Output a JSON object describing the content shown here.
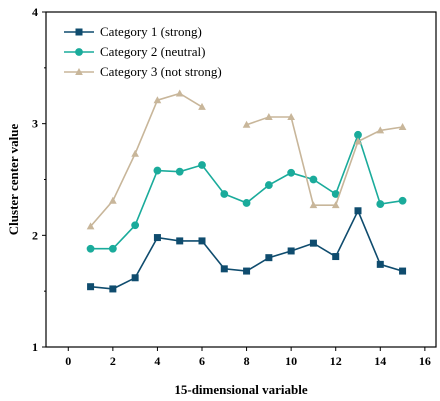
{
  "chart_data": {
    "type": "line",
    "xlabel": "15-dimensional variable",
    "ylabel": "Cluster center value",
    "xlim": [
      -1,
      16.5
    ],
    "ylim": [
      1,
      4
    ],
    "xticks": [
      0,
      2,
      4,
      6,
      8,
      10,
      12,
      14,
      16
    ],
    "yticks": [
      1,
      2,
      3,
      4
    ],
    "grid": false,
    "legend_position": "top-left",
    "x": [
      1,
      2,
      3,
      4,
      5,
      6,
      7,
      8,
      9,
      10,
      11,
      12,
      13,
      14,
      15
    ],
    "series": [
      {
        "name": "Category 1 (strong)",
        "color": "#0f4c6e",
        "marker": "square",
        "values": [
          1.54,
          1.52,
          1.62,
          1.98,
          1.95,
          1.95,
          1.7,
          1.68,
          1.8,
          1.86,
          1.93,
          1.81,
          2.22,
          1.74,
          1.68
        ]
      },
      {
        "name": "Category 2 (neutral)",
        "color": "#1aab9b",
        "marker": "circle",
        "values": [
          1.88,
          1.88,
          2.09,
          2.58,
          2.57,
          2.63,
          2.37,
          2.29,
          2.45,
          2.56,
          2.5,
          2.37,
          2.9,
          2.28,
          2.31
        ]
      },
      {
        "name": "Category 3 (not strong)",
        "color": "#c8b69a",
        "marker": "triangle",
        "values": [
          2.08,
          2.31,
          2.73,
          3.21,
          3.27,
          3.15,
          null,
          2.99,
          3.06,
          3.06,
          2.27,
          2.27,
          2.84,
          2.94,
          2.97
        ]
      }
    ]
  }
}
